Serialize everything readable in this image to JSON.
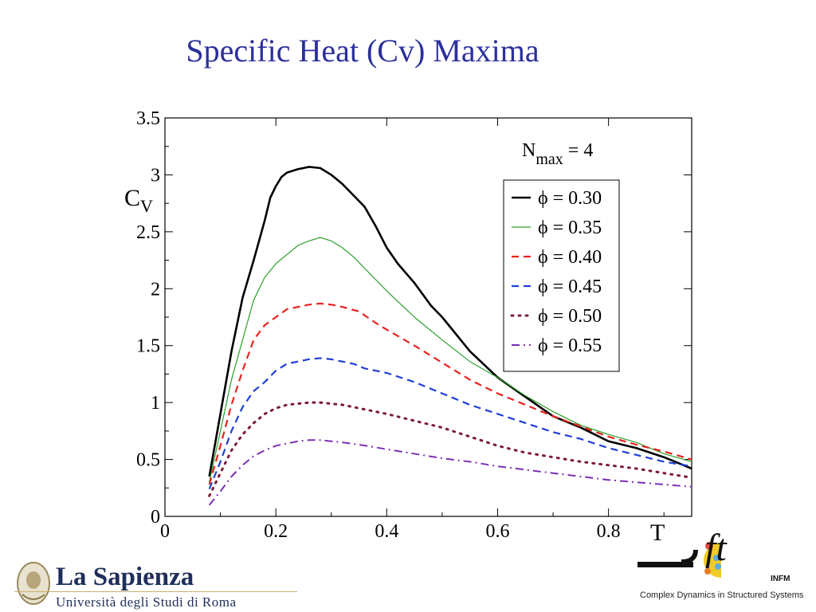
{
  "slide": {
    "title": "Specific Heat (Cv) Maxima"
  },
  "chart_data": {
    "type": "line",
    "title": "",
    "xlabel": "T",
    "ylabel_main": "C",
    "ylabel_sub": "V",
    "xlim": [
      0,
      0.95
    ],
    "ylim": [
      0,
      3.5
    ],
    "x_ticks": [
      "0",
      "0.2",
      "0.4",
      "0.6",
      "0.8"
    ],
    "y_ticks": [
      "0",
      "0.5",
      "1",
      "1.5",
      "2",
      "2.5",
      "3",
      "3.5"
    ],
    "legend_header_main": "N",
    "legend_header_sub": "max",
    "legend_header_value": " = 4",
    "legend_position": "top-right",
    "grid": false,
    "series": [
      {
        "name": "ϕ = 0.30",
        "color": "#000000",
        "style": "solid-thick",
        "x": [
          0.08,
          0.1,
          0.12,
          0.14,
          0.16,
          0.18,
          0.19,
          0.2,
          0.21,
          0.22,
          0.24,
          0.26,
          0.28,
          0.3,
          0.32,
          0.34,
          0.36,
          0.38,
          0.4,
          0.42,
          0.45,
          0.48,
          0.5,
          0.55,
          0.6,
          0.65,
          0.7,
          0.75,
          0.8,
          0.85,
          0.9,
          0.95
        ],
        "y": [
          0.35,
          0.9,
          1.45,
          1.92,
          2.25,
          2.6,
          2.8,
          2.9,
          2.98,
          3.02,
          3.05,
          3.07,
          3.06,
          3.0,
          2.92,
          2.82,
          2.72,
          2.55,
          2.36,
          2.22,
          2.05,
          1.85,
          1.75,
          1.45,
          1.22,
          1.05,
          0.88,
          0.78,
          0.66,
          0.6,
          0.52,
          0.42
        ]
      },
      {
        "name": "ϕ = 0.35",
        "color": "#2ca02c",
        "style": "solid-thin",
        "x": [
          0.08,
          0.1,
          0.12,
          0.14,
          0.16,
          0.18,
          0.2,
          0.22,
          0.24,
          0.26,
          0.28,
          0.3,
          0.32,
          0.34,
          0.36,
          0.4,
          0.45,
          0.5,
          0.55,
          0.6,
          0.65,
          0.7,
          0.75,
          0.8,
          0.85,
          0.9,
          0.95
        ],
        "y": [
          0.3,
          0.75,
          1.2,
          1.55,
          1.9,
          2.1,
          2.22,
          2.3,
          2.38,
          2.42,
          2.45,
          2.42,
          2.36,
          2.28,
          2.18,
          1.98,
          1.75,
          1.55,
          1.36,
          1.22,
          1.06,
          0.92,
          0.8,
          0.72,
          0.65,
          0.55,
          0.48
        ]
      },
      {
        "name": "ϕ = 0.40",
        "color": "#e8231f",
        "style": "dashed",
        "x": [
          0.08,
          0.1,
          0.12,
          0.14,
          0.16,
          0.18,
          0.2,
          0.22,
          0.24,
          0.26,
          0.28,
          0.3,
          0.32,
          0.35,
          0.38,
          0.4,
          0.45,
          0.5,
          0.55,
          0.6,
          0.65,
          0.7,
          0.75,
          0.8,
          0.85,
          0.9,
          0.95
        ],
        "y": [
          0.28,
          0.62,
          0.98,
          1.28,
          1.55,
          1.68,
          1.75,
          1.82,
          1.84,
          1.86,
          1.87,
          1.86,
          1.84,
          1.8,
          1.7,
          1.64,
          1.5,
          1.35,
          1.2,
          1.08,
          0.98,
          0.88,
          0.79,
          0.7,
          0.63,
          0.57,
          0.5
        ]
      },
      {
        "name": "ϕ = 0.45",
        "color": "#1f3fd8",
        "style": "dashed",
        "x": [
          0.08,
          0.1,
          0.12,
          0.14,
          0.16,
          0.18,
          0.2,
          0.22,
          0.24,
          0.26,
          0.28,
          0.3,
          0.32,
          0.34,
          0.36,
          0.38,
          0.4,
          0.45,
          0.5,
          0.55,
          0.6,
          0.65,
          0.7,
          0.75,
          0.8,
          0.85,
          0.9,
          0.95
        ],
        "y": [
          0.24,
          0.48,
          0.75,
          0.96,
          1.1,
          1.18,
          1.28,
          1.34,
          1.36,
          1.38,
          1.39,
          1.38,
          1.36,
          1.34,
          1.3,
          1.28,
          1.26,
          1.18,
          1.08,
          0.98,
          0.9,
          0.82,
          0.74,
          0.68,
          0.6,
          0.54,
          0.48,
          0.44
        ]
      },
      {
        "name": "ϕ = 0.50",
        "color": "#7b1a3a",
        "style": "dotted",
        "x": [
          0.08,
          0.1,
          0.12,
          0.14,
          0.16,
          0.18,
          0.2,
          0.22,
          0.24,
          0.26,
          0.28,
          0.3,
          0.32,
          0.35,
          0.4,
          0.45,
          0.5,
          0.55,
          0.6,
          0.65,
          0.7,
          0.75,
          0.8,
          0.85,
          0.9,
          0.95
        ],
        "y": [
          0.18,
          0.38,
          0.58,
          0.72,
          0.82,
          0.9,
          0.95,
          0.98,
          0.99,
          1.0,
          1.0,
          0.99,
          0.98,
          0.95,
          0.9,
          0.84,
          0.78,
          0.7,
          0.62,
          0.56,
          0.52,
          0.48,
          0.45,
          0.42,
          0.38,
          0.34
        ]
      },
      {
        "name": "ϕ = 0.55",
        "color": "#7b2fb5",
        "style": "dashdot",
        "x": [
          0.08,
          0.1,
          0.12,
          0.14,
          0.16,
          0.18,
          0.2,
          0.22,
          0.24,
          0.26,
          0.28,
          0.3,
          0.32,
          0.35,
          0.4,
          0.45,
          0.5,
          0.55,
          0.6,
          0.65,
          0.7,
          0.75,
          0.8,
          0.85,
          0.9,
          0.95
        ],
        "y": [
          0.1,
          0.22,
          0.35,
          0.45,
          0.53,
          0.58,
          0.62,
          0.64,
          0.66,
          0.67,
          0.67,
          0.66,
          0.65,
          0.63,
          0.59,
          0.55,
          0.51,
          0.48,
          0.44,
          0.41,
          0.38,
          0.35,
          0.32,
          0.3,
          0.28,
          0.26
        ]
      }
    ]
  },
  "footer": {
    "sapienza_name": "La Sapienza",
    "sapienza_sub": "Università degli Studi di Roma",
    "soft_text": "ft",
    "soft_infm": "INFM",
    "soft_caption": "Complex Dynamics in Structured Systems"
  }
}
